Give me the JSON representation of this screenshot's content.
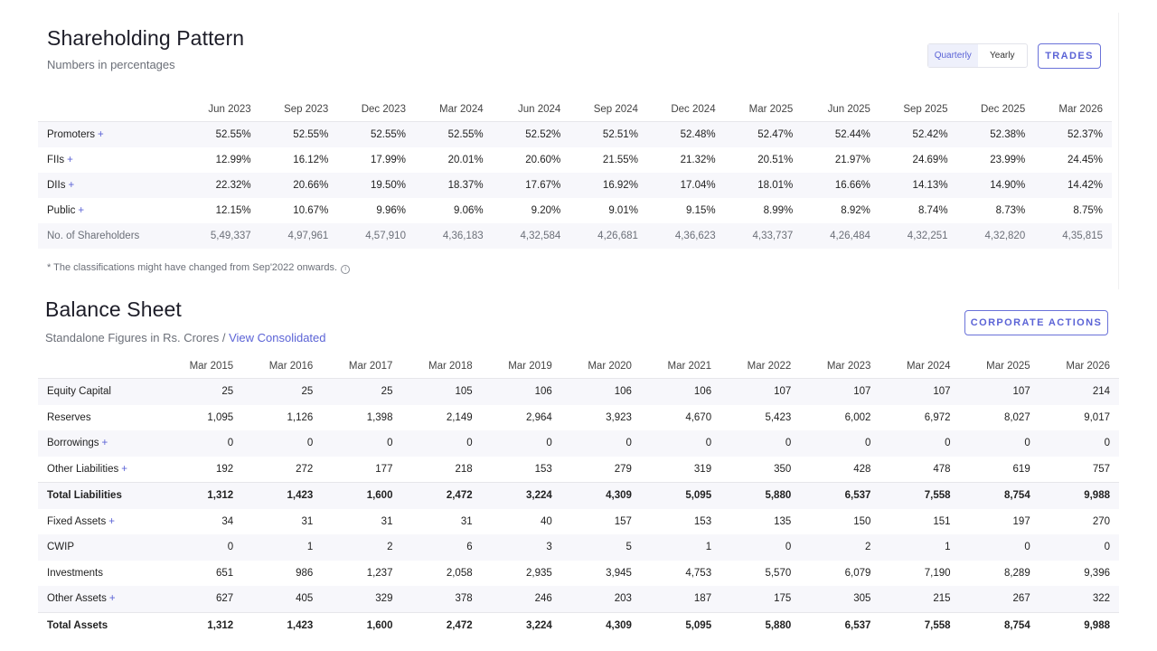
{
  "shareholding": {
    "title": "Shareholding Pattern",
    "subtitle": "Numbers in percentages",
    "toggle": {
      "quarterly": "Quarterly",
      "yearly": "Yearly",
      "active": "quarterly"
    },
    "trades_label": "TRADES",
    "columns": [
      "Jun 2023",
      "Sep 2023",
      "Dec 2023",
      "Mar 2024",
      "Jun 2024",
      "Sep 2024",
      "Dec 2024",
      "Mar 2025",
      "Jun 2025",
      "Sep 2025",
      "Dec 2025",
      "Mar 2026"
    ],
    "rows": [
      {
        "label": "Promoters",
        "expandable": true,
        "values": [
          "52.55%",
          "52.55%",
          "52.55%",
          "52.55%",
          "52.52%",
          "52.51%",
          "52.48%",
          "52.47%",
          "52.44%",
          "52.42%",
          "52.38%",
          "52.37%"
        ]
      },
      {
        "label": "FIIs",
        "expandable": true,
        "values": [
          "12.99%",
          "16.12%",
          "17.99%",
          "20.01%",
          "20.60%",
          "21.55%",
          "21.32%",
          "20.51%",
          "21.97%",
          "24.69%",
          "23.99%",
          "24.45%"
        ]
      },
      {
        "label": "DIIs",
        "expandable": true,
        "values": [
          "22.32%",
          "20.66%",
          "19.50%",
          "18.37%",
          "17.67%",
          "16.92%",
          "17.04%",
          "18.01%",
          "16.66%",
          "14.13%",
          "14.90%",
          "14.42%"
        ]
      },
      {
        "label": "Public",
        "expandable": true,
        "values": [
          "12.15%",
          "10.67%",
          "9.96%",
          "9.06%",
          "9.20%",
          "9.01%",
          "9.15%",
          "8.99%",
          "8.92%",
          "8.74%",
          "8.73%",
          "8.75%"
        ]
      },
      {
        "label": "No. of Shareholders",
        "expandable": false,
        "muted": true,
        "values": [
          "5,49,337",
          "4,97,961",
          "4,57,910",
          "4,36,183",
          "4,32,584",
          "4,26,681",
          "4,36,623",
          "4,33,737",
          "4,26,484",
          "4,32,251",
          "4,32,820",
          "4,35,815"
        ]
      }
    ],
    "note": "* The classifications might have changed from Sep'2022 onwards.",
    "info_icon": "i"
  },
  "balance_sheet": {
    "title": "Balance Sheet",
    "subtitle": "Standalone Figures in Rs. Crores /",
    "consolidated_link": "View Consolidated",
    "corporate_actions_label": "CORPORATE ACTIONS",
    "columns": [
      "Mar 2015",
      "Mar 2016",
      "Mar 2017",
      "Mar 2018",
      "Mar 2019",
      "Mar 2020",
      "Mar 2021",
      "Mar 2022",
      "Mar 2023",
      "Mar 2024",
      "Mar 2025",
      "Mar 2026"
    ],
    "rows": [
      {
        "label": "Equity Capital",
        "expandable": false,
        "values": [
          "25",
          "25",
          "25",
          "105",
          "106",
          "106",
          "106",
          "107",
          "107",
          "107",
          "107",
          "214"
        ]
      },
      {
        "label": "Reserves",
        "expandable": false,
        "values": [
          "1,095",
          "1,126",
          "1,398",
          "2,149",
          "2,964",
          "3,923",
          "4,670",
          "5,423",
          "6,002",
          "6,972",
          "8,027",
          "9,017"
        ]
      },
      {
        "label": "Borrowings",
        "expandable": true,
        "values": [
          "0",
          "0",
          "0",
          "0",
          "0",
          "0",
          "0",
          "0",
          "0",
          "0",
          "0",
          "0"
        ]
      },
      {
        "label": "Other Liabilities",
        "expandable": true,
        "values": [
          "192",
          "272",
          "177",
          "218",
          "153",
          "279",
          "319",
          "350",
          "428",
          "478",
          "619",
          "757"
        ]
      },
      {
        "label": "Total Liabilities",
        "expandable": false,
        "bold": true,
        "values": [
          "1,312",
          "1,423",
          "1,600",
          "2,472",
          "3,224",
          "4,309",
          "5,095",
          "5,880",
          "6,537",
          "7,558",
          "8,754",
          "9,988"
        ]
      },
      {
        "label": "Fixed Assets",
        "expandable": true,
        "values": [
          "34",
          "31",
          "31",
          "31",
          "40",
          "157",
          "153",
          "135",
          "150",
          "151",
          "197",
          "270"
        ]
      },
      {
        "label": "CWIP",
        "expandable": false,
        "values": [
          "0",
          "1",
          "2",
          "6",
          "3",
          "5",
          "1",
          "0",
          "2",
          "1",
          "0",
          "0"
        ]
      },
      {
        "label": "Investments",
        "expandable": false,
        "values": [
          "651",
          "986",
          "1,237",
          "2,058",
          "2,935",
          "3,945",
          "4,753",
          "5,570",
          "6,079",
          "7,190",
          "8,289",
          "9,396"
        ]
      },
      {
        "label": "Other Assets",
        "expandable": true,
        "values": [
          "627",
          "405",
          "329",
          "378",
          "246",
          "203",
          "187",
          "175",
          "305",
          "215",
          "267",
          "322"
        ]
      },
      {
        "label": "Total Assets",
        "expandable": false,
        "bold": true,
        "values": [
          "1,312",
          "1,423",
          "1,600",
          "2,472",
          "3,224",
          "4,309",
          "5,095",
          "5,880",
          "6,537",
          "7,558",
          "8,754",
          "9,988"
        ]
      }
    ],
    "plus_symbol": "+"
  },
  "colors": {
    "accent": "#5b63d6",
    "row_alt": "#f7f7fb",
    "muted_text": "#6b6f78"
  }
}
